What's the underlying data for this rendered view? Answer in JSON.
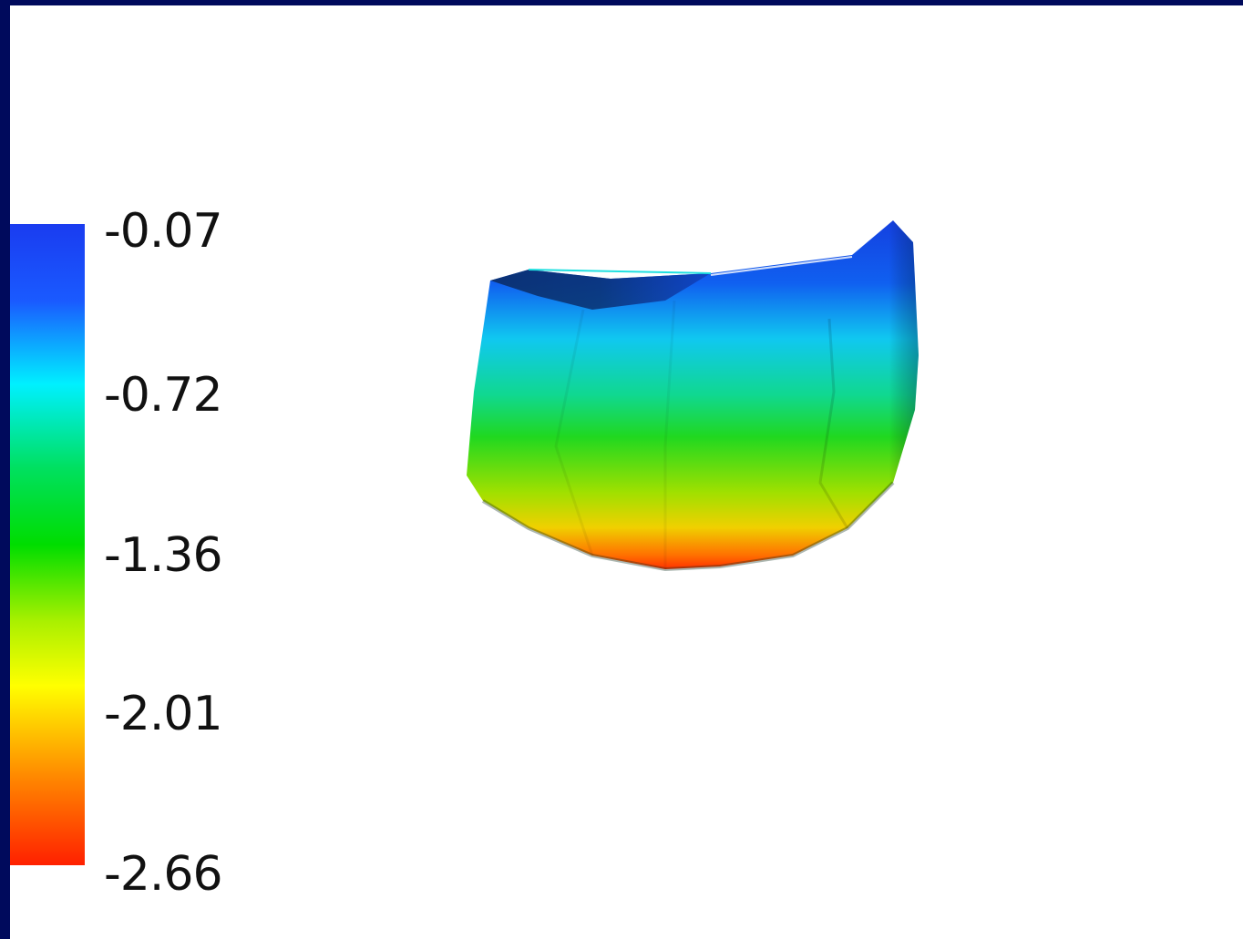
{
  "colorbar": {
    "tick_labels": [
      "-0.07",
      "-0.72",
      "-1.36",
      "-2.01",
      "-2.66"
    ],
    "stops": [
      "#0a2ce8",
      "#1a8cff",
      "#00eaff",
      "#00e020",
      "#20d800",
      "#ffff00",
      "#ff8000",
      "#ff2a00"
    ]
  },
  "colors": {
    "border": "#000a5c",
    "background": "#ffffff"
  }
}
